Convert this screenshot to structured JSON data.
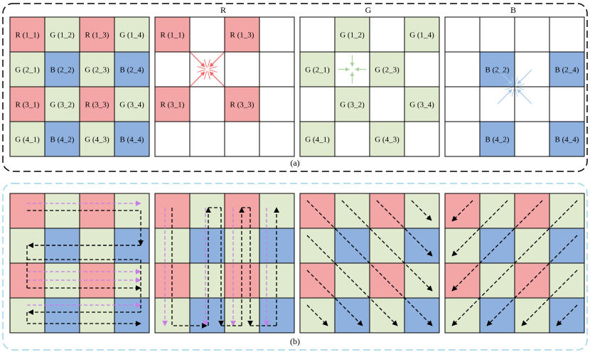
{
  "colors": {
    "red": "#f4a6a6",
    "green": "#dfeacf",
    "blue": "#8fb1e0",
    "white": "#ffffff",
    "panel_a_border": "#000000",
    "panel_b_border": "#9ed3ea",
    "red_arrow": "#ee6666",
    "green_arrow": "#a9d49a",
    "blue_arrow": "#a9c8e6",
    "purple_arrow": "#c77ee8",
    "black_arrow": "#000000"
  },
  "panel_a": {
    "caption": "(a)",
    "titles": [
      "",
      "R",
      "G",
      "B"
    ],
    "bayer_pattern": [
      [
        "R",
        "G",
        "R",
        "G"
      ],
      [
        "G",
        "B",
        "G",
        "B"
      ],
      [
        "R",
        "G",
        "R",
        "G"
      ],
      [
        "G",
        "B",
        "G",
        "B"
      ]
    ],
    "bayer_labels": [
      [
        "R (1_1)",
        "G (1_2)",
        "R (1_3)",
        "G (1_4)"
      ],
      [
        "G (2_1)",
        "B (2_2)",
        "G (2_3)",
        "B (2_4)"
      ],
      [
        "R (3_1)",
        "G (3_2)",
        "R (3_3)",
        "G (3_4)"
      ],
      [
        "G (4_1)",
        "B (4_2)",
        "G (4_3)",
        "B (4_4)"
      ]
    ],
    "channel_icons": [
      "converging-red-arrows-icon",
      "converging-green-arrows-icon",
      "converging-blue-arrows-icon"
    ]
  },
  "panel_b": {
    "caption": "(b)",
    "scan_orders": [
      "horizontal-snake",
      "vertical-snake",
      "diagonal-down-right",
      "diagonal-down-left"
    ]
  }
}
